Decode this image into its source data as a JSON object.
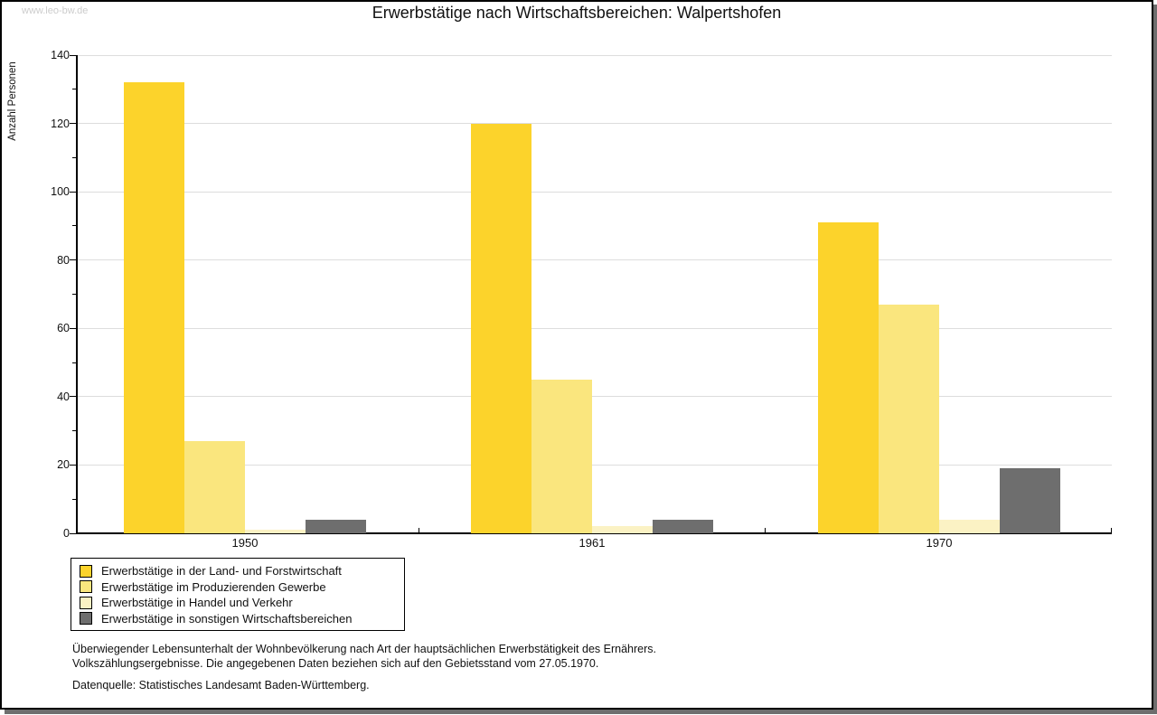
{
  "watermark": "www.leo-bw.de",
  "header": {
    "title": "Erwerbstätige nach Wirtschaftsbereichen: Walpertshofen"
  },
  "chart_data": {
    "type": "bar",
    "title": "Erwerbstätige nach Wirtschaftsbereichen: Walpertshofen",
    "xlabel": "",
    "ylabel": "Anzahl Personen",
    "ylim": [
      0,
      140
    ],
    "ytick_major_step": 20,
    "ytick_minor_step": 10,
    "grid": true,
    "legend_position": "bottom-left",
    "categories": [
      "1950",
      "1961",
      "1970"
    ],
    "series": [
      {
        "name": "Erwerbstätige in der Land- und Forstwirtschaft",
        "color": "#FCD32B",
        "values": [
          132,
          120,
          91
        ]
      },
      {
        "name": "Erwerbstätige im Produzierenden Gewerbe",
        "color": "#FAE67E",
        "values": [
          27,
          45,
          67
        ]
      },
      {
        "name": "Erwerbstätige in Handel und Verkehr",
        "color": "#FBF2C4",
        "values": [
          1,
          2,
          4
        ]
      },
      {
        "name": "Erwerbstätige in sonstigen Wirtschaftsbereichen",
        "color": "#6E6E6E",
        "values": [
          4,
          4,
          19
        ]
      }
    ]
  },
  "footnotes": {
    "line1": "Überwiegender Lebensunterhalt der Wohnbevölkerung nach Art der hauptsächlichen Erwerbstätigkeit des Ernährers.",
    "line2": "Volkszählungsergebnisse. Die angegebenen Daten beziehen sich auf den Gebietsstand vom 27.05.1970.",
    "source": "Datenquelle: Statistisches Landesamt Baden-Württemberg."
  },
  "colors": {
    "grid": "#DDDDDD",
    "axis": "#000000",
    "watermark": "#CCCCCC",
    "shadow": "#6E6E6E"
  }
}
